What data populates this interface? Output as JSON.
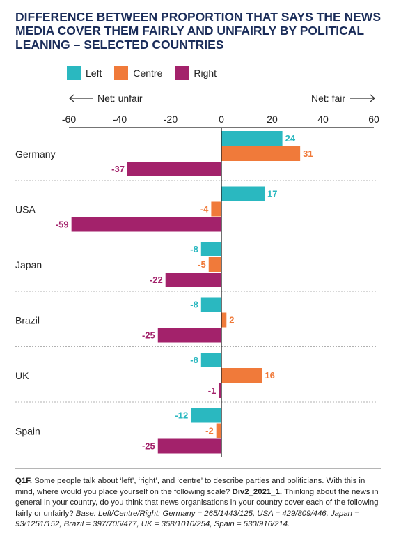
{
  "title_lines": [
    "DIFFERENCE BETWEEN PROPORTION THAT SAYS THE NEWS",
    "MEDIA COVER THEM FAIRLY AND UNFAIRLY BY POLITICAL",
    "LEANING – SELECTED COUNTRIES"
  ],
  "direction": {
    "left": "Net: unfair",
    "right": "Net: fair"
  },
  "colors": {
    "Left": "#2ab8c0",
    "Centre": "#f07a3a",
    "Right": "#a3226b",
    "title": "#1b2d5a"
  },
  "chart_data": {
    "type": "bar",
    "orientation": "horizontal",
    "categories": [
      "Germany",
      "USA",
      "Japan",
      "Brazil",
      "UK",
      "Spain"
    ],
    "series": [
      {
        "name": "Left",
        "values": [
          24,
          17,
          -8,
          -8,
          -8,
          -12
        ]
      },
      {
        "name": "Centre",
        "values": [
          31,
          -4,
          -5,
          2,
          16,
          -2
        ]
      },
      {
        "name": "Right",
        "values": [
          -37,
          -59,
          -22,
          -25,
          -1,
          -25
        ]
      }
    ],
    "xlim": [
      -60,
      60
    ],
    "xticks": [
      -60,
      -40,
      -20,
      0,
      20,
      40,
      60
    ],
    "legend": "top-left",
    "grid": false
  },
  "footnote": {
    "q_label": "Q1F.",
    "q_text": " Some people talk about ‘left’, ‘right’, and ‘centre’ to describe parties and politicians. With this in mind, where would you place yourself on the following scale? ",
    "code": "Div2_2021_1.",
    "q_text2": " Thinking about the news in general in your country, do you think that news organisations in your country cover each of the following fairly or unfairly? ",
    "base": "Base: Left/Centre/Right: Germany = 265/1443/125, USA = 429/809/446, Japan = 93/1251/152, Brazil = 397/705/477, UK = 358/1010/254, Spain = 530/916/214."
  }
}
